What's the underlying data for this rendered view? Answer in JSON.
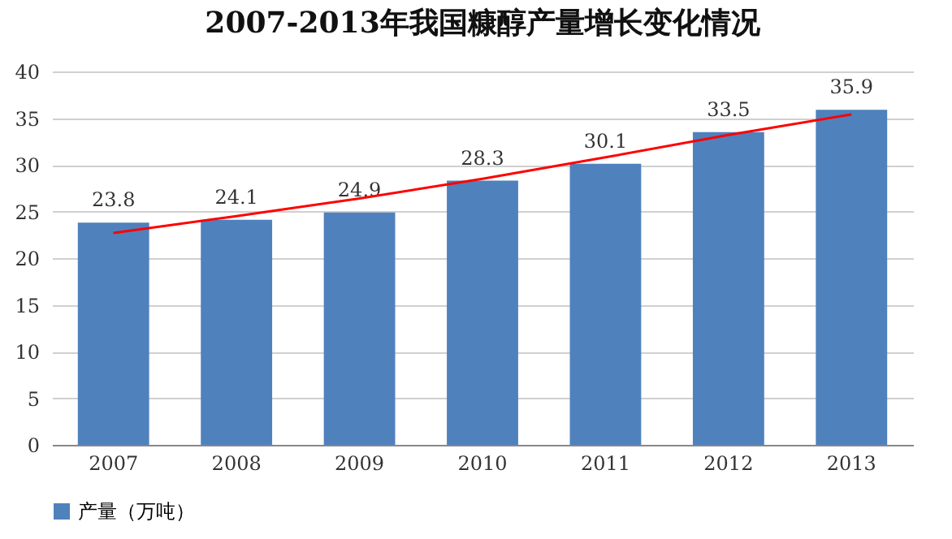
{
  "chart_data": {
    "type": "bar",
    "title": "2007-2013年我国糠醇产量增长变化情况",
    "categories": [
      "2007",
      "2008",
      "2009",
      "2010",
      "2011",
      "2012",
      "2013"
    ],
    "series": [
      {
        "name": "产量（万吨）",
        "color": "#4f81bd",
        "values": [
          23.8,
          24.1,
          24.9,
          28.3,
          30.1,
          33.5,
          35.9
        ],
        "value_labels": [
          "23.8",
          "24.1",
          "24.9",
          "28.3",
          "30.1",
          "33.5",
          "35.9"
        ]
      },
      {
        "type": "line",
        "color": "#ff0000",
        "values": [
          22.7,
          24.5,
          26.4,
          28.5,
          30.8,
          33.2,
          35.4
        ]
      }
    ],
    "ylim": [
      0,
      40
    ],
    "yticks": [
      0,
      5,
      10,
      15,
      20,
      25,
      30,
      35,
      40
    ],
    "grid": "y",
    "legend": "bottom"
  }
}
